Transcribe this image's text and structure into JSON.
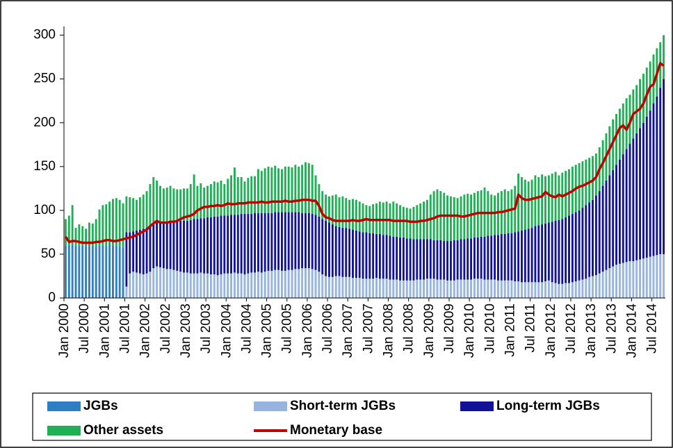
{
  "chart_data": {
    "type": "bar",
    "stacked": true,
    "grid": false,
    "ylim": [
      0,
      310
    ],
    "yticks": [
      0,
      50,
      100,
      150,
      200,
      250,
      300
    ],
    "categories": [
      "Jan 2000",
      null,
      null,
      null,
      null,
      null,
      "Jul 2000",
      null,
      null,
      null,
      null,
      null,
      "Jan 2001",
      null,
      null,
      null,
      null,
      null,
      "Jul 2001",
      null,
      null,
      null,
      null,
      null,
      "Jan 2002",
      null,
      null,
      null,
      null,
      null,
      "Jul 2002",
      null,
      null,
      null,
      null,
      null,
      "Jan 2003",
      null,
      null,
      null,
      null,
      null,
      "Jul 2003",
      null,
      null,
      null,
      null,
      null,
      "Jan 2004",
      null,
      null,
      null,
      null,
      null,
      "Jul 2004",
      null,
      null,
      null,
      null,
      null,
      "Jan 2005",
      null,
      null,
      null,
      null,
      null,
      "Jul 2005",
      null,
      null,
      null,
      null,
      null,
      "Jan 2006",
      null,
      null,
      null,
      null,
      null,
      "Jul 2006",
      null,
      null,
      null,
      null,
      null,
      "Jan 2007",
      null,
      null,
      null,
      null,
      null,
      "Jul 2007",
      null,
      null,
      null,
      null,
      null,
      "Jan 2008",
      null,
      null,
      null,
      null,
      null,
      "Jul 2008",
      null,
      null,
      null,
      null,
      null,
      "Jan 2009",
      null,
      null,
      null,
      null,
      null,
      "Jul 2009",
      null,
      null,
      null,
      null,
      null,
      "Jan 2010",
      null,
      null,
      null,
      null,
      null,
      "Jul 2010",
      null,
      null,
      null,
      null,
      null,
      "Jan 2011",
      null,
      null,
      null,
      null,
      null,
      "Jul 2011",
      null,
      null,
      null,
      null,
      null,
      "Jan 2012",
      null,
      null,
      null,
      null,
      null,
      "Jul 2012",
      null,
      null,
      null,
      null,
      null,
      "Jan 2013",
      null,
      null,
      null,
      null,
      null,
      "Jul 2013",
      null,
      null,
      null,
      null,
      null,
      "Jan 2014",
      null,
      null,
      null,
      null,
      null,
      "Jul 2014",
      null,
      null,
      null
    ],
    "series": [
      {
        "name": "JGBs",
        "color": "#2f7ec2",
        "values": [
          60,
          60,
          61,
          60,
          60,
          60,
          59,
          59,
          59,
          60,
          60,
          60,
          60,
          61,
          60,
          60,
          59,
          58,
          null,
          null,
          null,
          null,
          null,
          null,
          null,
          null,
          null,
          null,
          null,
          null,
          null,
          null,
          null,
          null,
          null,
          null,
          null,
          null,
          null,
          null,
          null,
          null,
          null,
          null,
          null,
          null,
          null,
          null,
          null,
          null,
          null,
          null,
          null,
          null,
          null,
          null,
          null,
          null,
          null,
          null,
          null,
          null,
          null,
          null,
          null,
          null,
          null,
          null,
          null,
          null,
          null,
          null,
          null,
          null,
          null,
          null,
          null,
          null,
          null,
          null,
          null,
          null,
          null,
          null,
          null,
          null,
          null,
          null,
          null,
          null,
          null,
          null,
          null,
          null,
          null,
          null,
          null,
          null,
          null,
          null,
          null,
          null,
          null,
          null,
          null,
          null,
          null,
          null,
          null,
          null,
          null,
          null,
          null,
          null,
          null,
          null,
          null,
          null,
          null,
          null,
          null,
          null,
          null,
          null,
          null,
          null,
          null,
          null,
          null,
          null,
          null,
          null,
          null,
          null,
          null,
          null,
          null,
          null,
          null,
          null,
          null,
          null,
          null,
          null,
          null,
          null,
          null,
          null,
          null,
          null,
          null,
          null,
          null,
          null,
          null,
          null,
          null,
          null,
          null,
          null,
          null,
          null,
          null,
          null,
          null,
          null,
          null,
          null,
          null,
          null,
          null,
          null,
          null,
          null,
          null,
          null,
          null,
          null
        ]
      },
      {
        "name": "Short-term JGBs",
        "color": "#96b4dd",
        "values": [
          null,
          null,
          null,
          null,
          null,
          null,
          null,
          null,
          null,
          null,
          null,
          null,
          null,
          null,
          null,
          null,
          null,
          null,
          13,
          28,
          30,
          29,
          28,
          27,
          28,
          30,
          34,
          36,
          35,
          34,
          33,
          33,
          32,
          31,
          30,
          29,
          29,
          28,
          28,
          28,
          29,
          28,
          28,
          27,
          27,
          26,
          27,
          28,
          28,
          28,
          29,
          28,
          28,
          27,
          28,
          29,
          29,
          30,
          29,
          30,
          31,
          31,
          32,
          32,
          31,
          31,
          32,
          32,
          33,
          33,
          34,
          34,
          34,
          33,
          32,
          30,
          27,
          25,
          24,
          24,
          25,
          25,
          24,
          24,
          24,
          23,
          23,
          23,
          22,
          22,
          22,
          22,
          23,
          22,
          22,
          22,
          21,
          21,
          21,
          20,
          20,
          20,
          20,
          20,
          21,
          21,
          21,
          22,
          22,
          22,
          21,
          21,
          21,
          20,
          20,
          20,
          21,
          21,
          21,
          21,
          21,
          22,
          22,
          22,
          21,
          21,
          21,
          21,
          20,
          20,
          20,
          20,
          20,
          19,
          19,
          18,
          18,
          18,
          18,
          18,
          18,
          18,
          19,
          20,
          18,
          17,
          16,
          16,
          17,
          17,
          18,
          19,
          20,
          21,
          22,
          24,
          25,
          26,
          28,
          30,
          32,
          34,
          36,
          38,
          39,
          40,
          41,
          42,
          42,
          43,
          44,
          45,
          46,
          47,
          48,
          49,
          50,
          50
        ]
      },
      {
        "name": "Long-term JGBs",
        "color": "#121296",
        "values": [
          null,
          null,
          null,
          null,
          null,
          null,
          null,
          null,
          null,
          null,
          null,
          null,
          null,
          null,
          null,
          null,
          null,
          null,
          62,
          47,
          46,
          48,
          50,
          52,
          52,
          52,
          50,
          50,
          51,
          52,
          52,
          53,
          54,
          56,
          58,
          59,
          59,
          61,
          62,
          62,
          62,
          63,
          64,
          65,
          66,
          67,
          67,
          66,
          66,
          67,
          66,
          67,
          68,
          69,
          68,
          67,
          68,
          67,
          68,
          67,
          66,
          66,
          66,
          66,
          67,
          67,
          66,
          66,
          65,
          65,
          63,
          63,
          63,
          63,
          63,
          63,
          63,
          63,
          62,
          60,
          57,
          56,
          56,
          56,
          55,
          55,
          54,
          53,
          53,
          53,
          52,
          52,
          50,
          51,
          50,
          50,
          50,
          49,
          49,
          49,
          49,
          48,
          48,
          47,
          46,
          46,
          46,
          45,
          45,
          44,
          45,
          45,
          44,
          45,
          45,
          46,
          45,
          46,
          46,
          47,
          47,
          47,
          47,
          48,
          49,
          50,
          50,
          51,
          52,
          53,
          53,
          54,
          54,
          56,
          57,
          59,
          60,
          61,
          62,
          64,
          65,
          66,
          66,
          66,
          69,
          71,
          73,
          74,
          75,
          77,
          78,
          79,
          80,
          82,
          84,
          85,
          87,
          91,
          94,
          98,
          102,
          106,
          110,
          114,
          119,
          124,
          129,
          134,
          140,
          145,
          150,
          155,
          161,
          167,
          174,
          181,
          190,
          200
        ]
      },
      {
        "name": "Other assets",
        "color": "#1fb055",
        "values": [
          30,
          34,
          45,
          20,
          24,
          22,
          20,
          27,
          26,
          30,
          41,
          46,
          47,
          49,
          53,
          54,
          53,
          50,
          41,
          40,
          38,
          35,
          37,
          39,
          42,
          48,
          54,
          48,
          42,
          39,
          41,
          42,
          39,
          37,
          36,
          37,
          37,
          41,
          51,
          38,
          40,
          35,
          36,
          38,
          40,
          39,
          40,
          36,
          42,
          45,
          54,
          43,
          42,
          37,
          41,
          43,
          42,
          50,
          48,
          51,
          53,
          52,
          53,
          50,
          49,
          52,
          52,
          51,
          54,
          52,
          55,
          58,
          57,
          56,
          45,
          37,
          32,
          30,
          30,
          33,
          36,
          34,
          36,
          34,
          33,
          35,
          35,
          34,
          33,
          31,
          31,
          33,
          35,
          37,
          37,
          38,
          37,
          40,
          38,
          37,
          35,
          35,
          34,
          37,
          39,
          41,
          43,
          45,
          51,
          56,
          58,
          56,
          55,
          52,
          51,
          49,
          48,
          49,
          51,
          51,
          50,
          51,
          53,
          53,
          56,
          51,
          47,
          45,
          48,
          49,
          51,
          48,
          50,
          53,
          66,
          61,
          57,
          54,
          55,
          58,
          55,
          57,
          54,
          54,
          55,
          56,
          51,
          53,
          53,
          53,
          54,
          54,
          54,
          53,
          52,
          51,
          50,
          48,
          50,
          52,
          54,
          56,
          58,
          58,
          58,
          58,
          58,
          56,
          56,
          55,
          56,
          56,
          56,
          56,
          56,
          55,
          52,
          50
        ]
      },
      {
        "name": "Monetary base",
        "color": "#c00000",
        "type": "line",
        "values": [
          70,
          64,
          65,
          65,
          64,
          63,
          63,
          63,
          63,
          64,
          64,
          65,
          66,
          66,
          65,
          65,
          66,
          67,
          68,
          69,
          70,
          72,
          74,
          76,
          78,
          82,
          85,
          88,
          86,
          86,
          86,
          87,
          87,
          88,
          90,
          92,
          93,
          94,
          96,
          100,
          102,
          104,
          104,
          105,
          105,
          106,
          105,
          106,
          108,
          107,
          107,
          108,
          108,
          108,
          109,
          109,
          109,
          109,
          110,
          109,
          109,
          110,
          110,
          110,
          110,
          111,
          110,
          110,
          111,
          111,
          112,
          112,
          112,
          111,
          111,
          105,
          96,
          92,
          91,
          89,
          88,
          88,
          88,
          88,
          88,
          89,
          88,
          88,
          89,
          90,
          89,
          89,
          89,
          89,
          89,
          89,
          89,
          88,
          88,
          88,
          88,
          88,
          87,
          87,
          87,
          88,
          88,
          89,
          90,
          91,
          93,
          94,
          94,
          94,
          94,
          94,
          94,
          93,
          93,
          94,
          95,
          96,
          97,
          97,
          97,
          97,
          97,
          97,
          98,
          98,
          99,
          100,
          101,
          102,
          118,
          114,
          112,
          112,
          113,
          114,
          115,
          116,
          121,
          118,
          116,
          115,
          118,
          116,
          118,
          120,
          122,
          125,
          127,
          128,
          130,
          132,
          134,
          138,
          147,
          154,
          162,
          170,
          178,
          186,
          194,
          197,
          192,
          200,
          210,
          213,
          216,
          222,
          232,
          241,
          244,
          256,
          268,
          265
        ]
      }
    ]
  }
}
